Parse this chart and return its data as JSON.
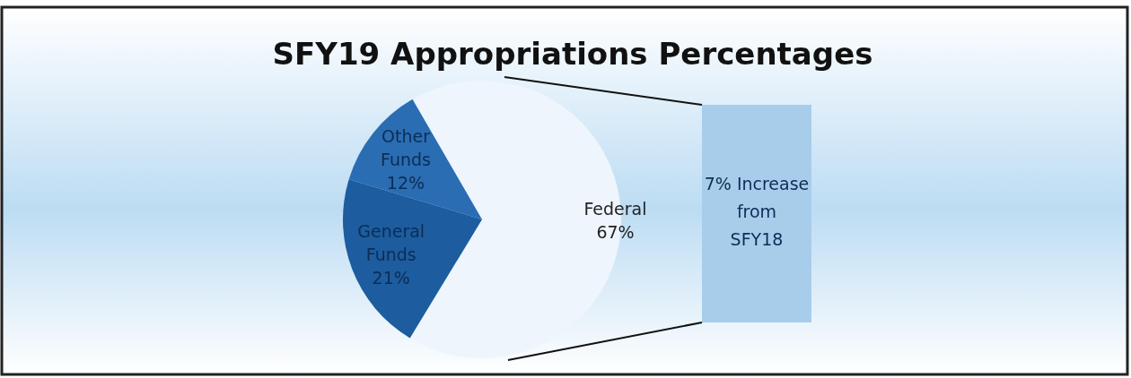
{
  "chart_data": {
    "type": "pie",
    "title": "SFY19 Appropriations Percentages",
    "categories": [
      "Federal",
      "General Funds",
      "Other Funds"
    ],
    "values": [
      67,
      21,
      12
    ],
    "value_labels": [
      "67%",
      "21%",
      "12%"
    ],
    "colors": [
      "#eef5fc",
      "#1d5c9e",
      "#2a6db3"
    ],
    "annotations": [
      "7% Increase from SFY18"
    ]
  }
}
